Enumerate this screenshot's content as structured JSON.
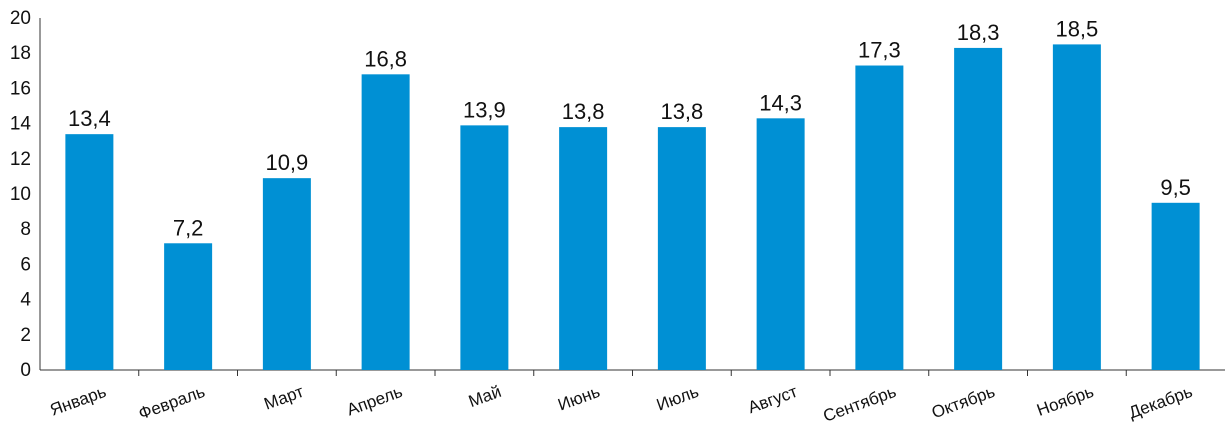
{
  "chart_data": {
    "type": "bar",
    "categories": [
      "Январь",
      "Февраль",
      "Март",
      "Апрель",
      "Май",
      "Июнь",
      "Июль",
      "Август",
      "Сентябрь",
      "Октябрь",
      "Ноябрь",
      "Декабрь"
    ],
    "values": [
      13.4,
      7.2,
      10.9,
      16.8,
      13.9,
      13.8,
      13.8,
      14.3,
      17.3,
      18.3,
      18.5,
      9.5
    ],
    "data_labels": [
      "13,4",
      "7,2",
      "10,9",
      "16,8",
      "13,9",
      "13,8",
      "13,8",
      "14,3",
      "17,3",
      "18,3",
      "18,5",
      "9,5"
    ],
    "y_ticks": [
      "0",
      "2",
      "4",
      "6",
      "8",
      "10",
      "12",
      "14",
      "16",
      "18",
      "20"
    ],
    "ylim": [
      0,
      20
    ],
    "title": "",
    "xlabel": "",
    "ylabel": "",
    "grid": false,
    "legend": "none",
    "bar_color": "#0090d4"
  }
}
